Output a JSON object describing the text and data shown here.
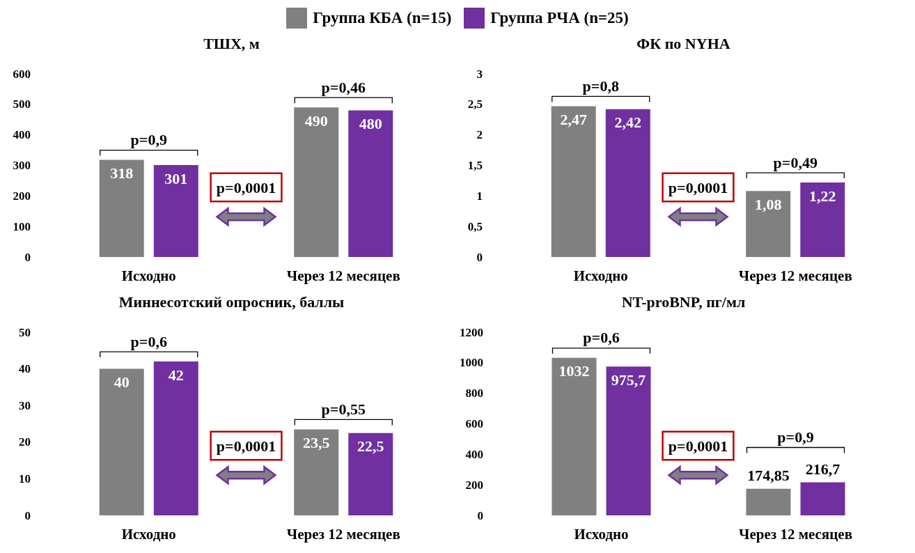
{
  "chart_data": [
    {
      "type": "bar",
      "title": "ТШХ, м",
      "categories": [
        "Исходно",
        "Через 12 месяцев"
      ],
      "legend": "top",
      "grid": false,
      "ylim": [
        0,
        600
      ],
      "yticks": [
        0,
        100,
        200,
        300,
        400,
        500,
        600
      ],
      "series": [
        {
          "name": "Группа КБА (n=15)",
          "color": "#808080",
          "values": [
            318,
            490
          ],
          "value_labels": [
            "318",
            "490"
          ]
        },
        {
          "name": "Группа РЧА (n=25)",
          "color": "#7030a0",
          "values": [
            301,
            480
          ],
          "value_labels": [
            "301",
            "480"
          ]
        }
      ],
      "annotations": [
        "p=0,9",
        "p=0,46",
        "p=0,0001"
      ]
    },
    {
      "type": "bar",
      "title": "ФК по NYHA",
      "categories": [
        "Исходно",
        "Через 12 месяцев"
      ],
      "grid": false,
      "ylim": [
        0,
        3
      ],
      "yticks": [
        0,
        {
          "value": 0.5,
          "label": "0,5"
        },
        1,
        {
          "value": 1.5,
          "label": "1,5"
        },
        2,
        {
          "value": 2.5,
          "label": "2,5"
        },
        3
      ],
      "series": [
        {
          "color": "#808080",
          "values": [
            2.47,
            1.08
          ],
          "value_labels": [
            "2,47",
            "1,08"
          ]
        },
        {
          "color": "#7030a0",
          "values": [
            2.42,
            1.22
          ],
          "value_labels": [
            "2,42",
            "1,22"
          ]
        }
      ],
      "annotations": [
        "p=0,8",
        "p=0,49",
        "p=0,0001"
      ]
    },
    {
      "type": "bar",
      "title": "Миннесотский опросник, баллы",
      "categories": [
        "Исходно",
        "Через 12 месяцев"
      ],
      "grid": false,
      "ylim": [
        0,
        50
      ],
      "yticks": [
        0,
        10,
        20,
        30,
        40,
        50
      ],
      "series": [
        {
          "color": "#808080",
          "values": [
            40,
            23.5
          ],
          "value_labels": [
            "40",
            "23,5"
          ]
        },
        {
          "color": "#7030a0",
          "values": [
            42,
            22.5
          ],
          "value_labels": [
            "42",
            "22,5"
          ]
        }
      ],
      "annotations": [
        "p=0,6",
        "p=0,55",
        "p=0,0001"
      ]
    },
    {
      "type": "bar",
      "title": "NT-proBNP, пг/мл",
      "categories": [
        "Исходно",
        "Через 12 месяцев"
      ],
      "grid": false,
      "ylim": [
        0,
        1200
      ],
      "yticks": [
        0,
        200,
        400,
        600,
        800,
        1000,
        1200
      ],
      "series": [
        {
          "color": "#808080",
          "values": [
            1032,
            174.85
          ],
          "value_labels": [
            "1032",
            "174,85"
          ]
        },
        {
          "color": "#7030a0",
          "values": [
            975.7,
            216.7
          ],
          "value_labels": [
            "975,7",
            "216,7"
          ]
        }
      ],
      "annotations": [
        "p=0,6",
        "p=0,9",
        "p=0,0001"
      ]
    }
  ]
}
